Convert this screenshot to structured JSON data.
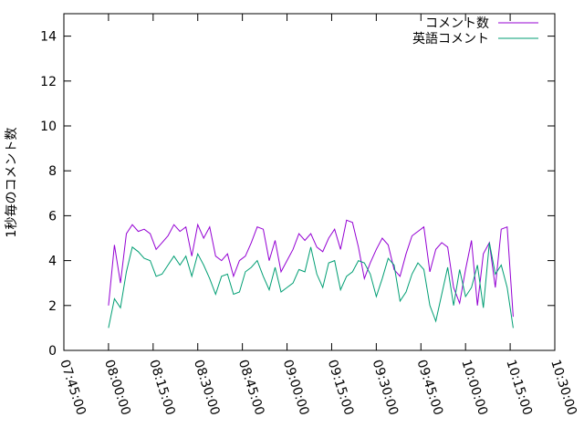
{
  "chart_data": {
    "type": "line",
    "y_label": "1秒毎のコメント数",
    "x": [
      "08:00:00",
      "08:02:00",
      "08:04:00",
      "08:06:00",
      "08:08:00",
      "08:10:00",
      "08:12:00",
      "08:14:00",
      "08:16:00",
      "08:18:00",
      "08:20:00",
      "08:22:00",
      "08:24:00",
      "08:26:00",
      "08:28:00",
      "08:30:00",
      "08:32:00",
      "08:34:00",
      "08:36:00",
      "08:38:00",
      "08:40:00",
      "08:42:00",
      "08:44:00",
      "08:46:00",
      "08:48:00",
      "08:50:00",
      "08:52:00",
      "08:54:00",
      "08:56:00",
      "08:58:00",
      "09:00:00",
      "09:02:00",
      "09:04:00",
      "09:06:00",
      "09:08:00",
      "09:10:00",
      "09:12:00",
      "09:14:00",
      "09:16:00",
      "09:18:00",
      "09:20:00",
      "09:22:00",
      "09:24:00",
      "09:26:00",
      "09:28:00",
      "09:30:00",
      "09:32:00",
      "09:34:00",
      "09:36:00",
      "09:38:00",
      "09:40:00",
      "09:42:00",
      "09:44:00",
      "09:46:00",
      "09:48:00",
      "09:50:00",
      "09:52:00",
      "09:54:00",
      "09:56:00",
      "09:58:00",
      "10:00:00",
      "10:02:00",
      "10:04:00",
      "10:06:00",
      "10:08:00",
      "10:10:00",
      "10:12:00",
      "10:14:00",
      "10:16:00"
    ],
    "series": [
      {
        "name": "コメント数",
        "color": "#9400d3",
        "values": [
          2.0,
          4.7,
          3.0,
          5.2,
          5.6,
          5.3,
          5.4,
          5.2,
          4.5,
          4.8,
          5.1,
          5.6,
          5.3,
          5.5,
          4.2,
          5.6,
          5.0,
          5.5,
          4.2,
          4.0,
          4.3,
          3.3,
          4.0,
          4.2,
          4.8,
          5.5,
          5.4,
          4.0,
          4.9,
          3.5,
          4.0,
          4.5,
          5.2,
          4.9,
          5.2,
          4.6,
          4.4,
          5.0,
          5.4,
          4.5,
          5.8,
          5.7,
          4.6,
          3.2,
          3.9,
          4.5,
          5.0,
          4.7,
          3.6,
          3.3,
          4.3,
          5.1,
          5.3,
          5.5,
          3.5,
          4.5,
          4.8,
          4.6,
          2.8,
          2.1,
          3.6,
          4.9,
          2.0,
          4.3,
          4.8,
          2.8,
          5.4,
          5.5,
          1.5
        ]
      },
      {
        "name": "英語コメント",
        "color": "#009e73",
        "values": [
          1.0,
          2.3,
          1.9,
          3.5,
          4.6,
          4.4,
          4.1,
          4.0,
          3.3,
          3.4,
          3.8,
          4.2,
          3.8,
          4.2,
          3.3,
          4.3,
          3.8,
          3.2,
          2.5,
          3.3,
          3.4,
          2.5,
          2.6,
          3.5,
          3.7,
          4.0,
          3.3,
          2.7,
          3.7,
          2.6,
          2.8,
          3.0,
          3.6,
          3.5,
          4.6,
          3.4,
          2.8,
          3.9,
          4.0,
          2.7,
          3.3,
          3.5,
          4.0,
          3.9,
          3.4,
          2.4,
          3.2,
          4.1,
          3.8,
          2.2,
          2.6,
          3.4,
          3.9,
          3.6,
          2.0,
          1.3,
          2.5,
          3.7,
          2.0,
          3.6,
          2.4,
          2.8,
          3.8,
          1.9,
          4.8,
          3.4,
          3.8,
          2.8,
          1.0
        ]
      }
    ],
    "xlim": [
      "07:45:00",
      "10:30:00"
    ],
    "xticks": [
      "07:45:00",
      "08:00:00",
      "08:15:00",
      "08:30:00",
      "08:45:00",
      "09:00:00",
      "09:15:00",
      "09:30:00",
      "09:45:00",
      "10:00:00",
      "10:15:00",
      "10:30:00"
    ],
    "ylim": [
      0,
      15
    ],
    "yticks": [
      0,
      2,
      4,
      6,
      8,
      10,
      12,
      14
    ],
    "legend": "top-right"
  }
}
